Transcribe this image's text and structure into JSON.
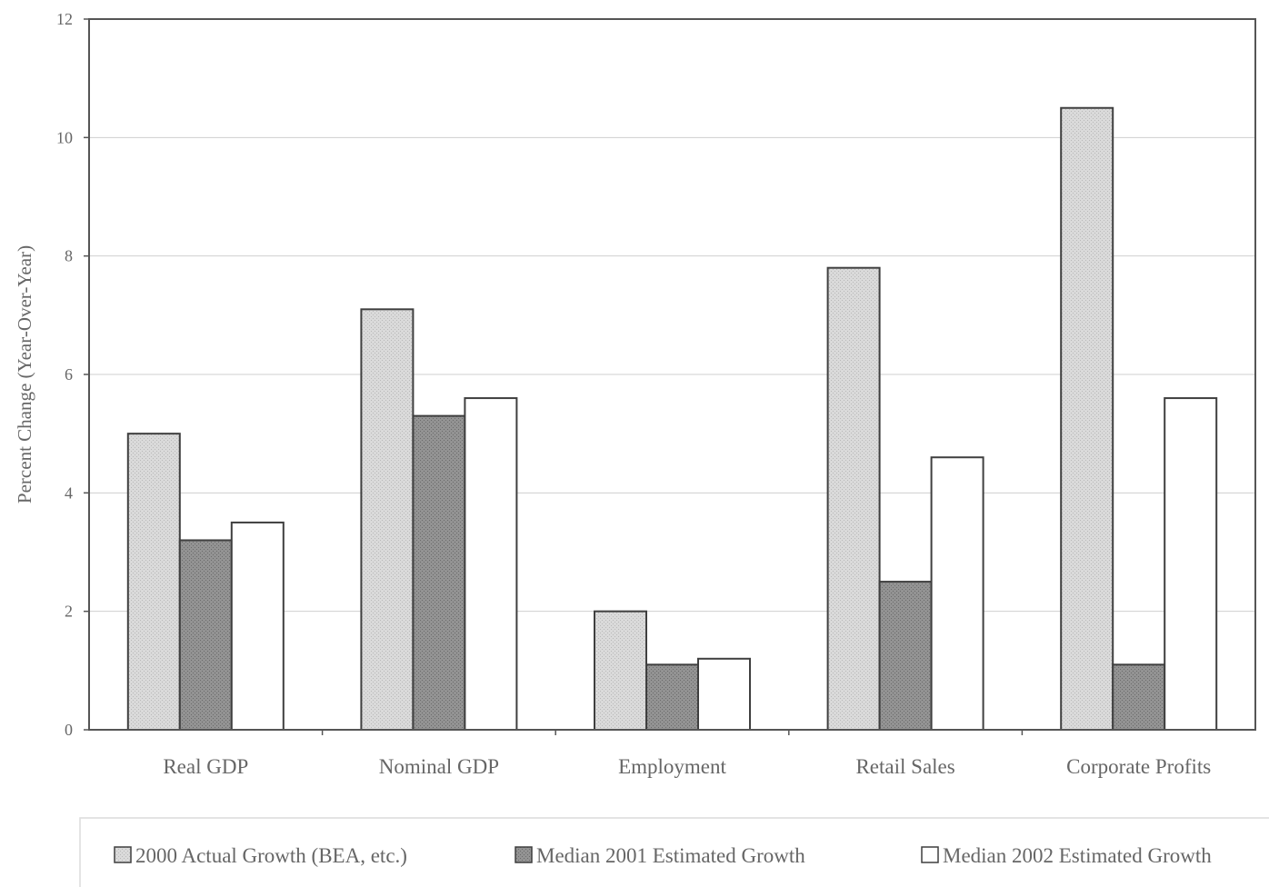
{
  "chart_data": {
    "type": "bar",
    "title": "",
    "xlabel": "",
    "ylabel": "Percent Change (Year-Over-Year)",
    "ylim": [
      0,
      12
    ],
    "yticks": [
      0,
      2,
      4,
      6,
      8,
      10,
      12
    ],
    "grid": true,
    "legend_position": "bottom",
    "categories": [
      "Real GDP",
      "Nominal GDP",
      "Employment",
      "Retail Sales",
      "Corporate Profits"
    ],
    "series": [
      {
        "name": "2000 Actual Growth (BEA, etc.)",
        "values": [
          5.0,
          7.1,
          2.0,
          7.8,
          10.5
        ],
        "color": "#d8d8d8",
        "pattern": "light-dots"
      },
      {
        "name": "Median 2001 Estimated Growth",
        "values": [
          3.2,
          5.3,
          1.1,
          2.5,
          1.1
        ],
        "color": "#8e8e8e",
        "pattern": "dark-dots"
      },
      {
        "name": "Median 2002 Estimated Growth",
        "values": [
          3.5,
          5.6,
          1.2,
          4.6,
          5.6
        ],
        "color": "#ffffff",
        "pattern": "none"
      }
    ]
  }
}
